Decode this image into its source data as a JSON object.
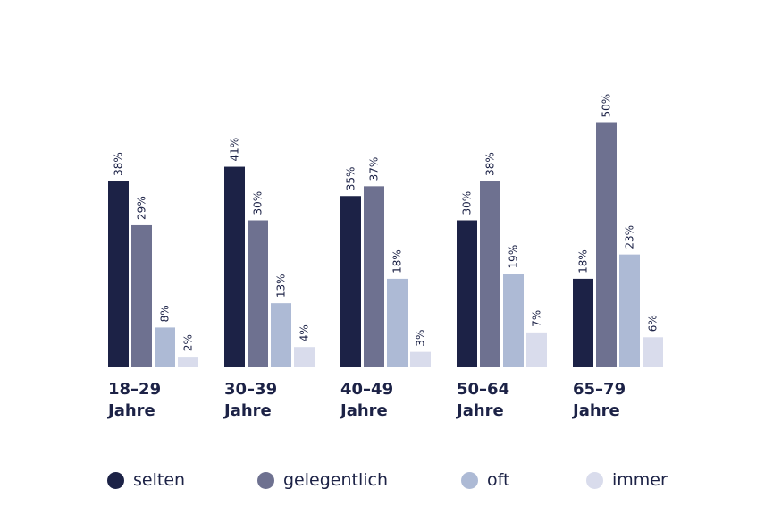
{
  "chart_data": {
    "type": "bar",
    "categories": [
      {
        "line1": "18–29",
        "line2": "Jahre"
      },
      {
        "line1": "30–39",
        "line2": "Jahre"
      },
      {
        "line1": "40–49",
        "line2": "Jahre"
      },
      {
        "line1": "50–64",
        "line2": "Jahre"
      },
      {
        "line1": "65–79",
        "line2": "Jahre"
      }
    ],
    "series": [
      {
        "name": "selten",
        "color": "#1c2246",
        "values": [
          38,
          41,
          35,
          30,
          18
        ]
      },
      {
        "name": "gelegentlich",
        "color": "#6e7190",
        "values": [
          29,
          30,
          37,
          38,
          50
        ]
      },
      {
        "name": "oft",
        "color": "#adbad5",
        "values": [
          8,
          13,
          18,
          19,
          23
        ]
      },
      {
        "name": "immer",
        "color": "#d9dcec",
        "values": [
          2,
          4,
          3,
          7,
          6
        ]
      }
    ],
    "value_suffix": "%",
    "ylim": [
      0,
      50
    ],
    "legend_position": "bottom",
    "grid": false
  }
}
